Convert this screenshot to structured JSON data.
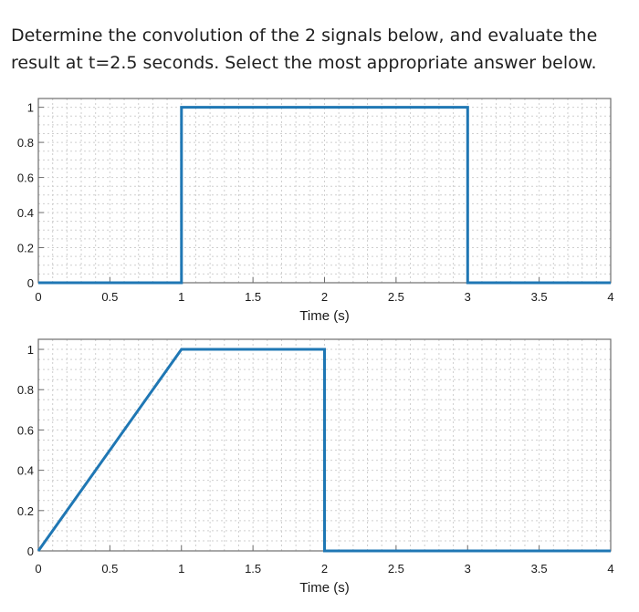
{
  "question": {
    "text": "Determine the convolution of the 2 signals below, and evaluate the result at t=2.5 seconds. Select the most appropriate answer below."
  },
  "style": {
    "line_color": "#1f77b4",
    "grid": true
  },
  "chart_data": [
    {
      "type": "line",
      "title": "",
      "xlabel": "Time (s)",
      "ylabel": "",
      "xlim": [
        0,
        4
      ],
      "ylim": [
        0,
        1.05
      ],
      "xticks": [
        0,
        0.5,
        1,
        1.5,
        2,
        2.5,
        3,
        3.5,
        4
      ],
      "xtick_labels": [
        "0",
        "0.5",
        "1",
        "1.5",
        "2",
        "2.5",
        "3",
        "3.5",
        "4"
      ],
      "yticks": [
        0,
        0.2,
        0.4,
        0.6,
        0.8,
        1
      ],
      "ytick_labels": [
        "0",
        "0.2",
        "0.4",
        "0.6",
        "0.8",
        "1"
      ],
      "grid": true,
      "series": [
        {
          "x": [
            0,
            1,
            1,
            3,
            3,
            4
          ],
          "y": [
            0,
            0,
            1,
            1,
            0,
            0
          ]
        }
      ]
    },
    {
      "type": "line",
      "title": "",
      "xlabel": "Time (s)",
      "ylabel": "",
      "xlim": [
        0,
        4
      ],
      "ylim": [
        0,
        1.05
      ],
      "xticks": [
        0,
        0.5,
        1,
        1.5,
        2,
        2.5,
        3,
        3.5,
        4
      ],
      "xtick_labels": [
        "0",
        "0.5",
        "1",
        "1.5",
        "2",
        "2.5",
        "3",
        "3.5",
        "4"
      ],
      "yticks": [
        0,
        0.2,
        0.4,
        0.6,
        0.8,
        1
      ],
      "ytick_labels": [
        "0",
        "0.2",
        "0.4",
        "0.6",
        "0.8",
        "1"
      ],
      "grid": true,
      "series": [
        {
          "x": [
            0,
            1,
            2,
            2,
            4
          ],
          "y": [
            0,
            1,
            1,
            0,
            0
          ]
        }
      ]
    }
  ]
}
